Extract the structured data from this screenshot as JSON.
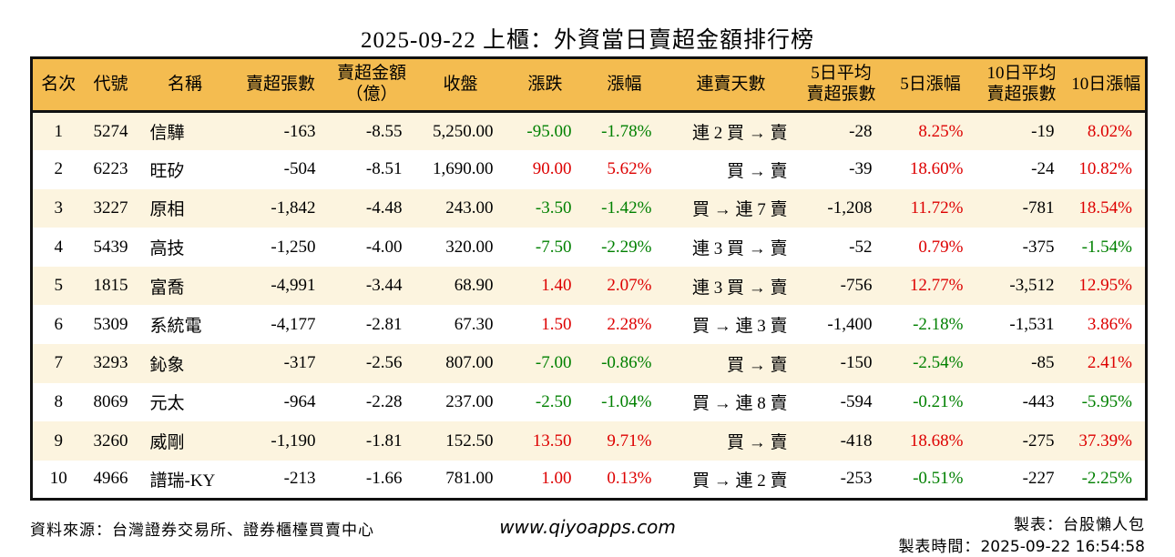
{
  "title": "2025-09-22 上櫃：外資當日賣超金額排行榜",
  "table": {
    "headers": [
      "名次",
      "代號",
      "名稱",
      "賣超張數",
      "賣超金額\n（億）",
      "收盤",
      "漲跌",
      "漲幅",
      "連賣天數",
      "5日平均\n賣超張數",
      "5日漲幅",
      "10日平均\n賣超張數",
      "10日漲幅"
    ],
    "column_keys": [
      "rank",
      "code",
      "name",
      "sell-shares",
      "sell-amount",
      "close",
      "change",
      "change-pct",
      "streak",
      "avg5-shares",
      "pct5",
      "avg10-shares",
      "pct10"
    ],
    "colored_columns": [
      6,
      7,
      10,
      12
    ],
    "rows": [
      [
        "1",
        "5274",
        "信驊",
        "-163",
        "-8.55",
        "5,250.00",
        "-95.00",
        "-1.78%",
        "連 2 買 → 賣",
        "-28",
        "8.25%",
        "-19",
        "8.02%"
      ],
      [
        "2",
        "6223",
        "旺矽",
        "-504",
        "-8.51",
        "1,690.00",
        "90.00",
        "5.62%",
        "買 → 賣",
        "-39",
        "18.60%",
        "-24",
        "10.82%"
      ],
      [
        "3",
        "3227",
        "原相",
        "-1,842",
        "-4.48",
        "243.00",
        "-3.50",
        "-1.42%",
        "買 → 連 7 賣",
        "-1,208",
        "11.72%",
        "-781",
        "18.54%"
      ],
      [
        "4",
        "5439",
        "高技",
        "-1,250",
        "-4.00",
        "320.00",
        "-7.50",
        "-2.29%",
        "連 3 買 → 賣",
        "-52",
        "0.79%",
        "-375",
        "-1.54%"
      ],
      [
        "5",
        "1815",
        "富喬",
        "-4,991",
        "-3.44",
        "68.90",
        "1.40",
        "2.07%",
        "連 3 買 → 賣",
        "-756",
        "12.77%",
        "-3,512",
        "12.95%"
      ],
      [
        "6",
        "5309",
        "系統電",
        "-4,177",
        "-2.81",
        "67.30",
        "1.50",
        "2.28%",
        "買 → 連 3 賣",
        "-1,400",
        "-2.18%",
        "-1,531",
        "3.86%"
      ],
      [
        "7",
        "3293",
        "鈊象",
        "-317",
        "-2.56",
        "807.00",
        "-7.00",
        "-0.86%",
        "買 → 賣",
        "-150",
        "-2.54%",
        "-85",
        "2.41%"
      ],
      [
        "8",
        "8069",
        "元太",
        "-964",
        "-2.28",
        "237.00",
        "-2.50",
        "-1.04%",
        "買 → 連 8 賣",
        "-594",
        "-0.21%",
        "-443",
        "-5.95%"
      ],
      [
        "9",
        "3260",
        "威剛",
        "-1,190",
        "-1.81",
        "152.50",
        "13.50",
        "9.71%",
        "買 → 賣",
        "-418",
        "18.68%",
        "-275",
        "37.39%"
      ],
      [
        "10",
        "4966",
        "譜瑞-KY",
        "-213",
        "-1.66",
        "781.00",
        "1.00",
        "0.13%",
        "買 → 連 2 賣",
        "-253",
        "-0.51%",
        "-227",
        "-2.25%"
      ]
    ]
  },
  "footer": {
    "source": "資料來源：台灣證券交易所、證券櫃檯買賣中心",
    "website": "www.qiyoapps.com",
    "maker": "製表：台股懶人包",
    "made_time_label": "製表時間：",
    "made_time": "2025-09-22 16:54:58"
  },
  "colors": {
    "positive_text": "#dd0000",
    "negative_text": "#008000",
    "header_bg": "#f4bc50",
    "alt_row_bg": "#fcf4df"
  }
}
